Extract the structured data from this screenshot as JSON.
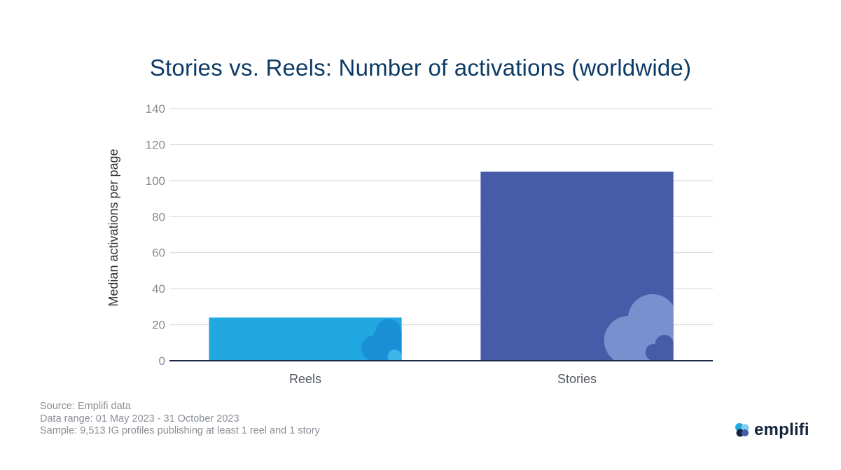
{
  "chart_data": {
    "type": "bar",
    "title": "Stories vs. Reels: Number of activations (worldwide)",
    "xlabel": "",
    "ylabel": "Median activations per page",
    "categories": [
      "Reels",
      "Stories"
    ],
    "values": [
      24,
      105
    ],
    "bar_colors": [
      "#22a8e1",
      "#465ca9"
    ],
    "ylim": [
      0,
      140
    ],
    "yticks": [
      0,
      20,
      40,
      60,
      80,
      100,
      120,
      140
    ],
    "grid": true
  },
  "footnotes": {
    "source": "Source: Emplifi data",
    "range": "Data range: 01 May 2023 - 31 October 2023",
    "sample": "Sample: 9,513 IG profiles publishing at least 1 reel and 1 story"
  },
  "brand": {
    "name": "emplifi",
    "icon": "emplifi-logo-icon"
  },
  "colors": {
    "title": "#0d3b66",
    "axis": "#1b2a47",
    "grid": "#d5d7da"
  }
}
